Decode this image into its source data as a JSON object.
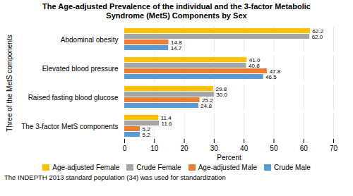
{
  "chart_data": {
    "type": "bar",
    "orientation": "horizontal",
    "title": "The Age-adjusted Prevalence of the individual and the 3-factor Metabolic\nSyndrome (MetS) Components by Sex",
    "xlabel": "Percent",
    "ylabel": "Three of the MetS components",
    "footnote": "The INDEPTH 2013 standard population (34) was used for standardization",
    "categories": [
      "Abdominal obesity",
      "Elevated blood pressure",
      "Raised fasting blood glucose",
      "The 3-factor MetS components"
    ],
    "series": [
      {
        "name": "Age-adjusted Female",
        "color": "#FFC000",
        "values": [
          62.2,
          41.0,
          29.8,
          11.4
        ],
        "value_labels": [
          "62.2",
          "41.0",
          "29.8",
          "11.4"
        ]
      },
      {
        "name": "Crude Female",
        "color": "#A5A5A5",
        "values": [
          62.0,
          40.8,
          30.0,
          11.6
        ],
        "value_labels": [
          "62.0",
          "40.8",
          "30.0",
          "11.6"
        ]
      },
      {
        "name": "Age-adjusted Male",
        "color": "#ED7D31",
        "values": [
          14.8,
          47.8,
          25.2,
          5.2
        ],
        "value_labels": [
          "14.8",
          "47.8",
          "25.2",
          "5.2"
        ]
      },
      {
        "name": "Crude Male",
        "color": "#5B9BD5",
        "values": [
          14.7,
          46.5,
          24.8,
          5.2
        ],
        "value_labels": [
          "14.7",
          "46.5",
          "24.8",
          "5.2"
        ]
      }
    ],
    "xlim": [
      0,
      70
    ],
    "xticks": [
      0,
      10,
      20,
      30,
      40,
      50,
      60,
      70
    ],
    "grid": true,
    "data_labels": true,
    "legend": "bottom"
  }
}
